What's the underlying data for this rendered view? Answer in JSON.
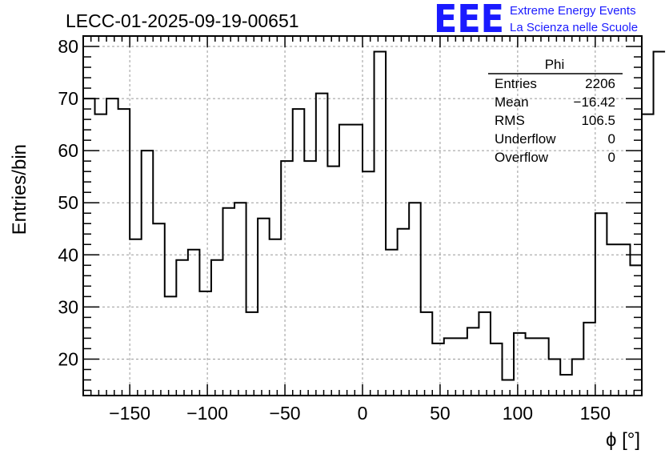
{
  "chart_data": {
    "type": "histogram",
    "title": "LECC-01-2025-09-19-00651",
    "xlabel": "ϕ [°]",
    "ylabel": "Entries/bin",
    "xlim": [
      -180,
      180
    ],
    "ylim": [
      13,
      82
    ],
    "xticks": [
      -150,
      -100,
      -50,
      0,
      50,
      100,
      150
    ],
    "xtick_labels": [
      "−150",
      "−100",
      "−50",
      "0",
      "50",
      "100",
      "150"
    ],
    "yticks": [
      20,
      30,
      40,
      50,
      60,
      70,
      80
    ],
    "grid": true,
    "bin_edges_start": -180,
    "bin_width": 7.5,
    "values": [
      70,
      67,
      70,
      68,
      43,
      60,
      46,
      32,
      39,
      41,
      33,
      39,
      49,
      50,
      29,
      47,
      43,
      58,
      68,
      58,
      71,
      57,
      65,
      65,
      56,
      79,
      41,
      45,
      50,
      29,
      23,
      24,
      24,
      26,
      29,
      23,
      16,
      25,
      24,
      24,
      20,
      17,
      20,
      27,
      48,
      42,
      42,
      38,
      67,
      79
    ],
    "stats_box": {
      "title": "Phi",
      "rows": [
        {
          "label": "Entries",
          "value": "2206"
        },
        {
          "label": "Mean",
          "value": "−16.42"
        },
        {
          "label": "RMS",
          "value": "106.5"
        },
        {
          "label": "Underflow",
          "value": "0"
        },
        {
          "label": "Overflow",
          "value": "0"
        }
      ]
    },
    "logo": {
      "mark": "EEE",
      "line1": "Extreme Energy Events",
      "line2": "La Scienza nelle Scuole",
      "color": "#1a1aff"
    }
  }
}
